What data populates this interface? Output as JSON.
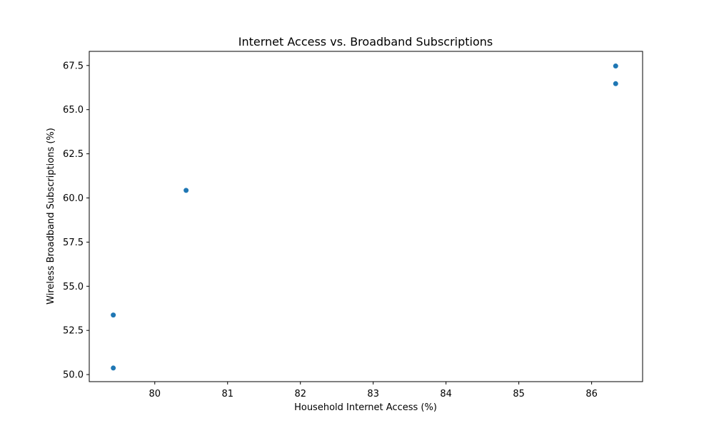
{
  "chart_data": {
    "type": "scatter",
    "title": "Internet Access vs. Broadband Subscriptions",
    "xlabel": "Household Internet Access (%)",
    "ylabel": "Wireless Broadband Subscriptions (%)",
    "xlim": [
      79.1,
      86.7
    ],
    "ylim": [
      49.6,
      68.3
    ],
    "xticks": [
      80,
      81,
      82,
      83,
      84,
      85,
      86
    ],
    "xtick_labels": [
      "80",
      "81",
      "82",
      "83",
      "84",
      "85",
      "86"
    ],
    "yticks": [
      50.0,
      52.5,
      55.0,
      57.5,
      60.0,
      62.5,
      65.0,
      67.5
    ],
    "ytick_labels": [
      "50.0",
      "52.5",
      "55.0",
      "57.5",
      "60.0",
      "62.5",
      "65.0",
      "67.5"
    ],
    "grid": false,
    "series": [
      {
        "color": "#1f77b4",
        "points": [
          {
            "x": 79.43,
            "y": 50.37
          },
          {
            "x": 79.43,
            "y": 53.37
          },
          {
            "x": 80.43,
            "y": 60.43
          },
          {
            "x": 86.33,
            "y": 66.47
          },
          {
            "x": 86.33,
            "y": 67.47
          }
        ]
      }
    ]
  }
}
